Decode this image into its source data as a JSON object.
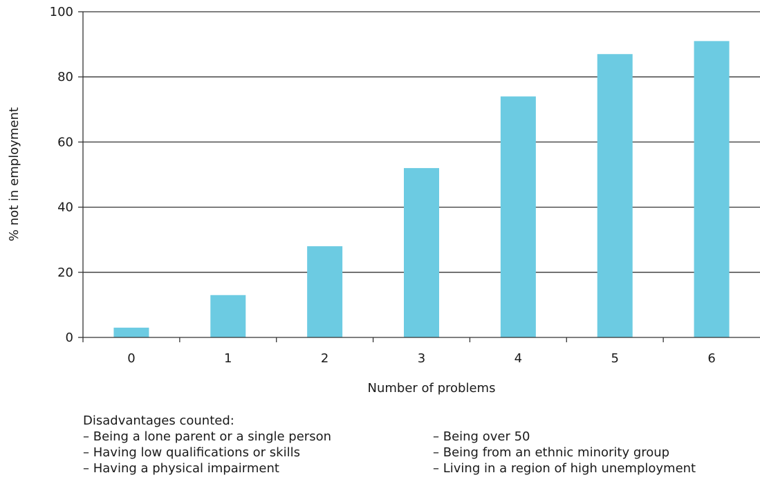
{
  "chart_data": {
    "type": "bar",
    "title": "",
    "xlabel": "Number of problems",
    "ylabel": "% not in employment",
    "categories": [
      "0",
      "1",
      "2",
      "3",
      "4",
      "5",
      "6"
    ],
    "values": [
      3,
      13,
      28,
      52,
      74,
      87,
      91
    ],
    "ylim": [
      0,
      100
    ],
    "yticks": [
      "0",
      "20",
      "40",
      "60",
      "80",
      "100"
    ],
    "grid": true,
    "bar_color": "#6ccbe2",
    "legend": "none"
  },
  "notes": {
    "heading": "Disadvantages counted:",
    "items": [
      "– Being a lone parent or a single person",
      "– Being over 50",
      "– Having low qualifications or skills",
      "– Being from an ethnic minority group",
      "– Having a physical impairment",
      "– Living in a region of high unemployment"
    ]
  }
}
